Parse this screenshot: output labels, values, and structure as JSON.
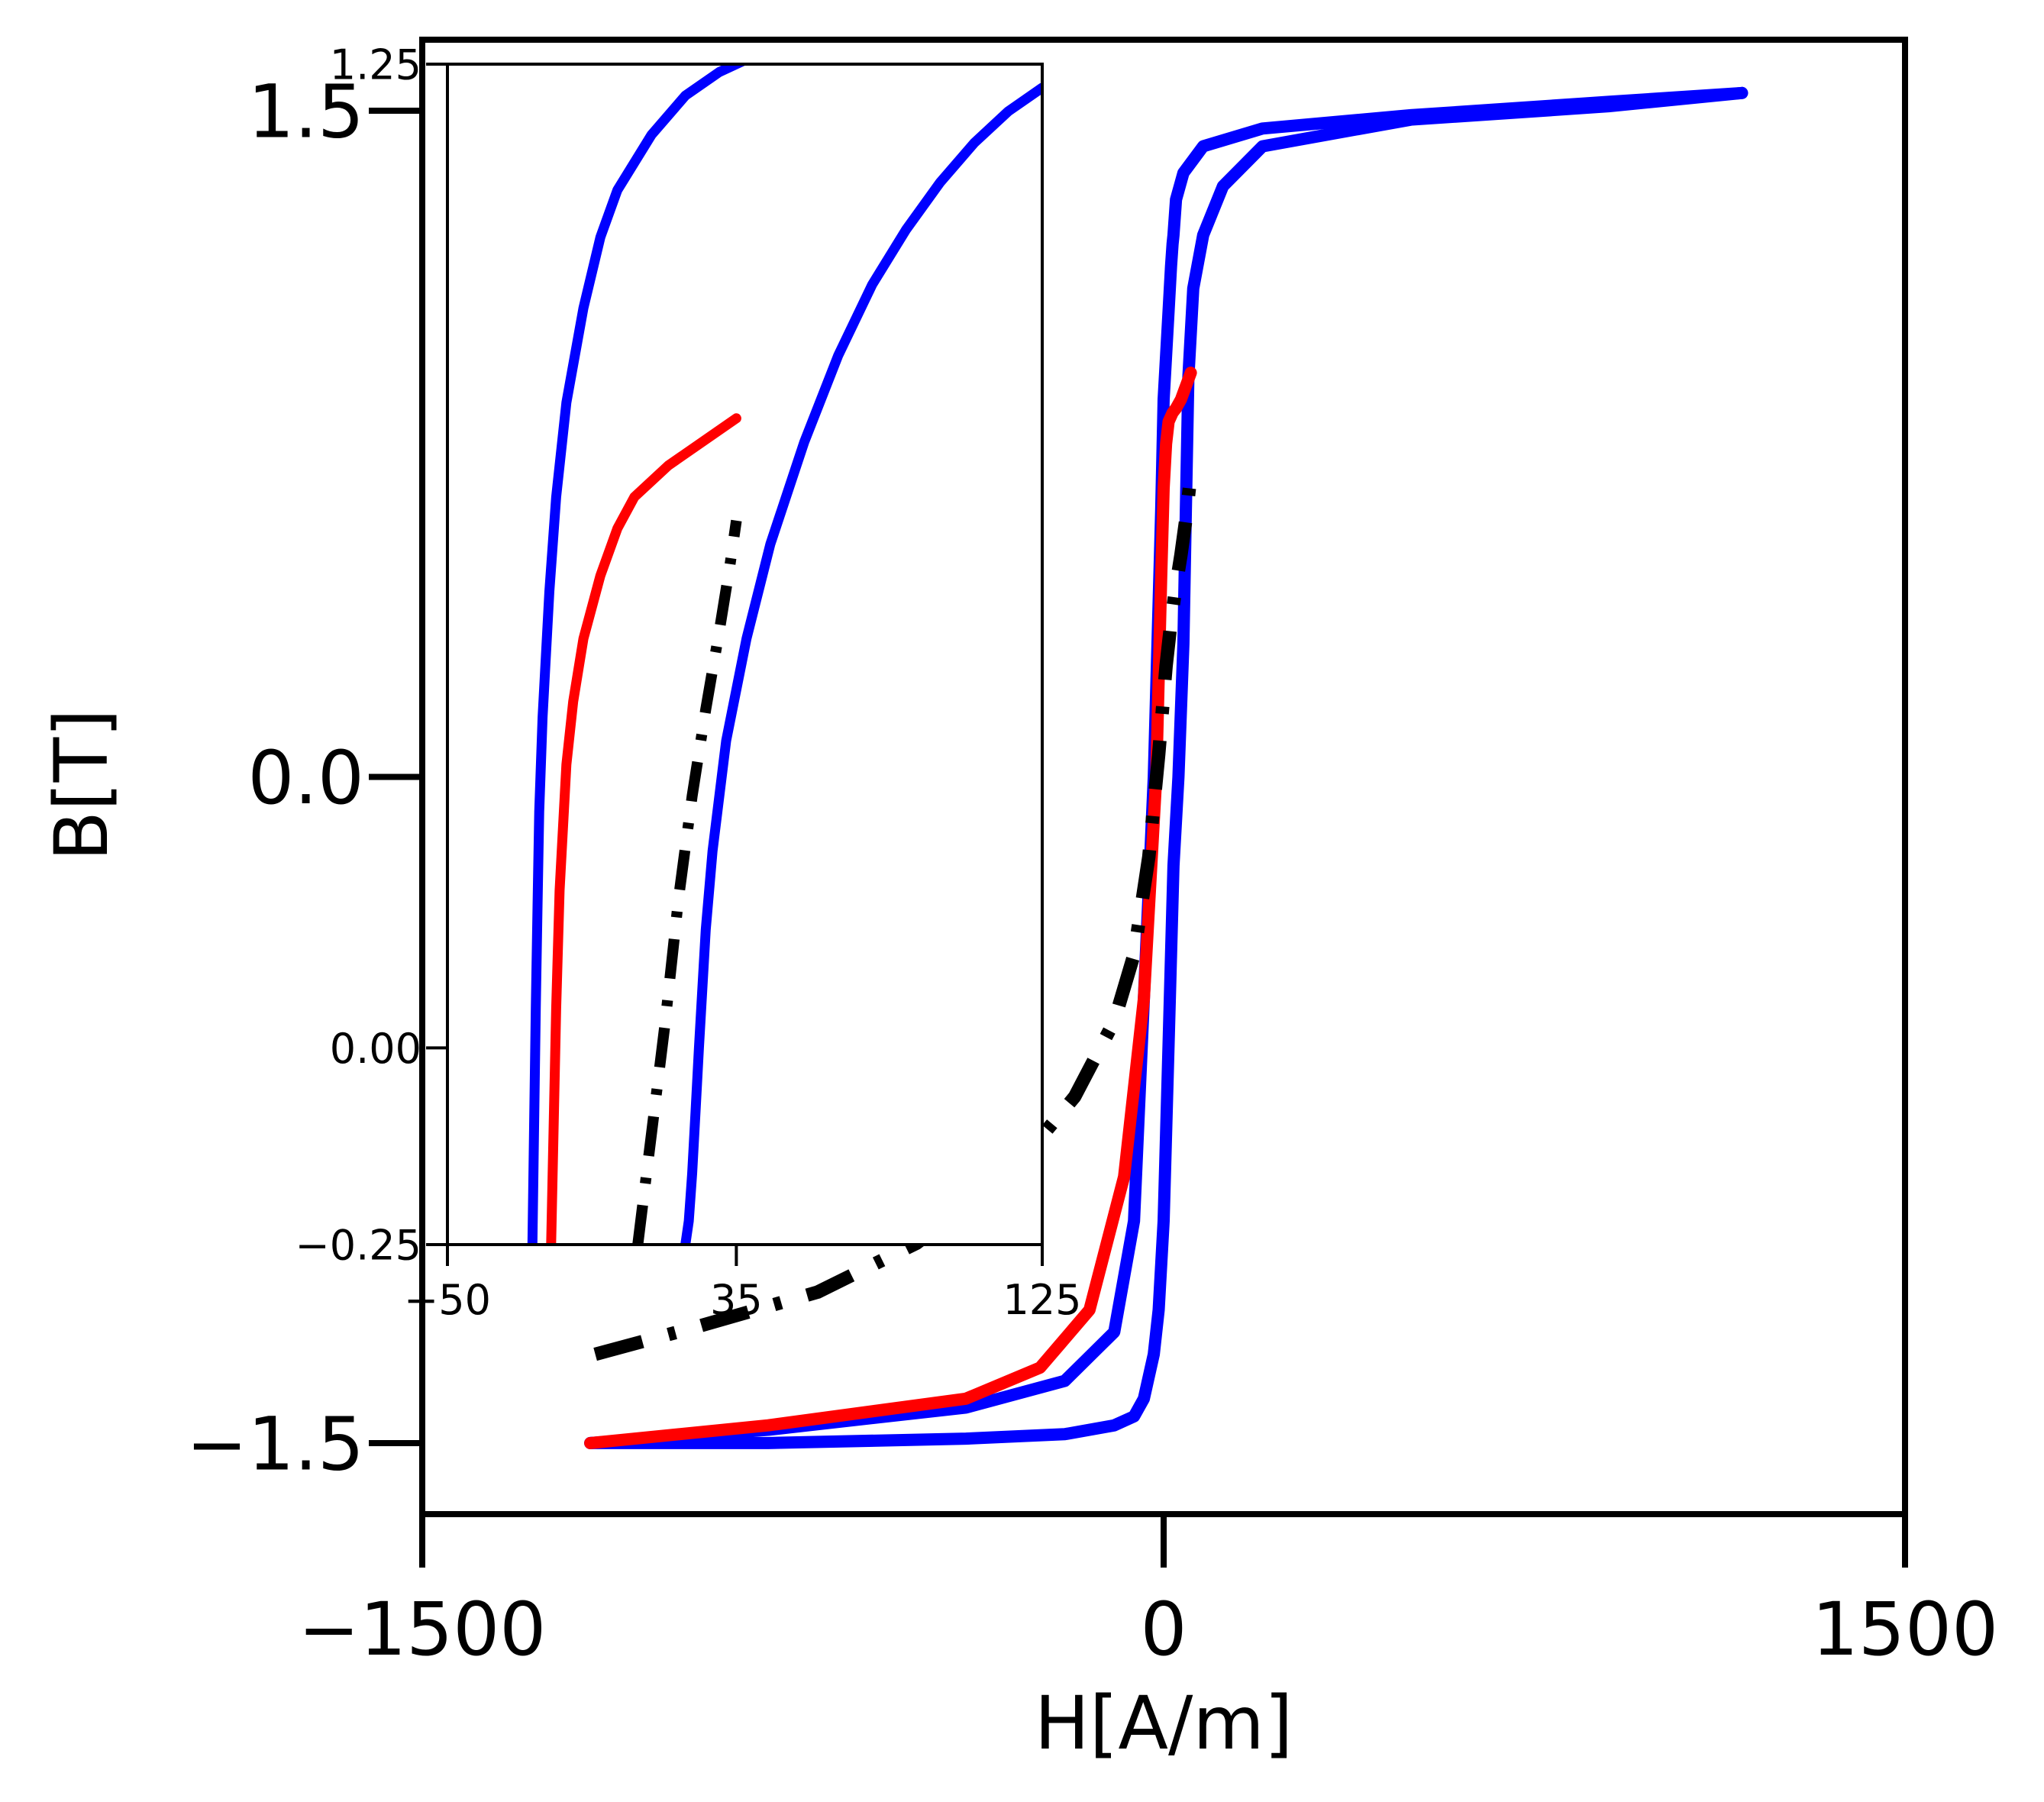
{
  "chart_data": [
    {
      "type": "line",
      "xlabel": "H[A/m]",
      "ylabel": "B[T]",
      "xlim": [
        -1500,
        1500
      ],
      "ylim": [
        -1.66,
        1.66
      ],
      "xticks": [
        -1500,
        0,
        1500
      ],
      "xtick_labels": [
        "−1500",
        "0",
        "1500"
      ],
      "yticks": [
        -1.5,
        0.0,
        1.5
      ],
      "ytick_labels": [
        "−1.5",
        "0.0",
        "1.5"
      ],
      "grid": false,
      "legend": "none",
      "series": [
        {
          "color": "#0000ff",
          "style": "solid",
          "x": [
            -1160,
            -800,
            -400,
            -200,
            -100,
            -60,
            -40,
            -20,
            -5,
            0,
            10,
            15,
            18,
            20,
            25,
            40,
            80,
            200,
            500,
            900,
            1170
          ],
          "y": [
            -1.5,
            -1.47,
            -1.42,
            -1.36,
            -1.25,
            -1.0,
            -0.5,
            0.0,
            0.6,
            0.85,
            1.05,
            1.15,
            1.2,
            1.22,
            1.3,
            1.36,
            1.42,
            1.46,
            1.49,
            1.52,
            1.54
          ]
        },
        {
          "color": "#0000ff",
          "style": "solid",
          "x": [
            1170,
            900,
            500,
            200,
            120,
            80,
            60,
            50,
            45,
            40,
            30,
            20,
            10,
            0,
            -10,
            -20,
            -40,
            -60,
            -100,
            -200,
            -400,
            -800,
            -1160
          ],
          "y": [
            1.54,
            1.51,
            1.48,
            1.42,
            1.33,
            1.22,
            1.1,
            0.9,
            0.6,
            0.3,
            0.0,
            -0.2,
            -0.6,
            -1.0,
            -1.2,
            -1.3,
            -1.4,
            -1.44,
            -1.46,
            -1.48,
            -1.49,
            -1.5,
            -1.5
          ]
        },
        {
          "color": "#ff0000",
          "style": "solid",
          "x": [
            -1160,
            -800,
            -400,
            -250,
            -150,
            -80,
            -40,
            -15,
            -5,
            0,
            5,
            10,
            18,
            25,
            35,
            45,
            55
          ],
          "y": [
            -1.5,
            -1.46,
            -1.4,
            -1.33,
            -1.2,
            -0.9,
            -0.5,
            0.0,
            0.45,
            0.65,
            0.75,
            0.8,
            0.82,
            0.83,
            0.85,
            0.88,
            0.91
          ]
        },
        {
          "color": "#000000",
          "style": "dashdot",
          "x": [
            -1150,
            -950,
            -700,
            -500,
            -300,
            -180,
            -100,
            -60,
            -30,
            -10,
            5,
            15,
            25,
            35,
            45,
            55
          ],
          "y": [
            -1.3,
            -1.24,
            -1.16,
            -1.05,
            -0.88,
            -0.72,
            -0.55,
            -0.4,
            -0.18,
            0.05,
            0.25,
            0.35,
            0.43,
            0.5,
            0.58,
            0.68
          ]
        }
      ]
    },
    {
      "type": "line",
      "inset": true,
      "xlim": [
        -50,
        125
      ],
      "ylim": [
        -0.25,
        1.25
      ],
      "xticks": [
        -50,
        35,
        125
      ],
      "xtick_labels": [
        "−50",
        "35",
        "125"
      ],
      "yticks": [
        -0.25,
        0.0,
        1.25
      ],
      "ytick_labels": [
        "−0.25",
        "0.00",
        "1.25"
      ],
      "grid": false,
      "series": [
        {
          "color": "#0000ff",
          "style": "solid",
          "x": [
            -25,
            -24.5,
            -24,
            -23.5,
            -23,
            -22,
            -20,
            -18,
            -15,
            -10,
            -5,
            0,
            10,
            20,
            30,
            40,
            50
          ],
          "y": [
            -0.25,
            -0.1,
            0.05,
            0.18,
            0.3,
            0.42,
            0.58,
            0.7,
            0.82,
            0.94,
            1.03,
            1.09,
            1.16,
            1.21,
            1.24,
            1.26,
            1.27
          ]
        },
        {
          "color": "#0000ff",
          "style": "solid",
          "x": [
            125,
            115,
            105,
            95,
            85,
            75,
            65,
            55,
            45,
            38,
            32,
            28,
            26,
            24,
            23,
            22,
            21,
            20
          ],
          "y": [
            1.22,
            1.19,
            1.15,
            1.1,
            1.04,
            0.97,
            0.88,
            0.77,
            0.64,
            0.52,
            0.39,
            0.25,
            0.15,
            0.0,
            -0.08,
            -0.16,
            -0.22,
            -0.25
          ]
        },
        {
          "color": "#ff0000",
          "style": "solid",
          "x": [
            -19.5,
            -19,
            -18.5,
            -18,
            -17,
            -15,
            -13,
            -10,
            -5,
            0,
            5,
            15,
            25,
            35
          ],
          "y": [
            -0.25,
            -0.15,
            -0.05,
            0.05,
            0.2,
            0.36,
            0.44,
            0.52,
            0.6,
            0.66,
            0.7,
            0.74,
            0.77,
            0.8
          ]
        },
        {
          "color": "#000000",
          "style": "dashdot",
          "x": [
            6,
            10,
            14,
            18,
            22,
            26,
            30,
            33,
            35
          ],
          "y": [
            -0.25,
            -0.11,
            0.03,
            0.19,
            0.32,
            0.43,
            0.53,
            0.61,
            0.67
          ]
        }
      ]
    }
  ]
}
